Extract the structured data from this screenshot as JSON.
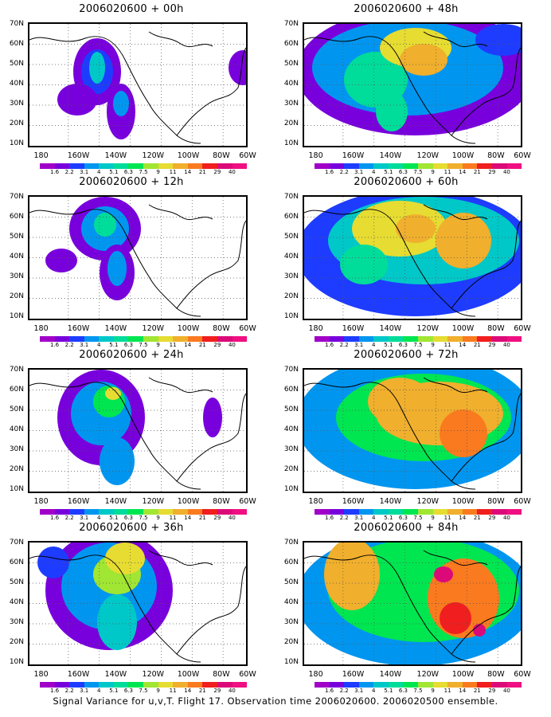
{
  "panels": [
    {
      "title": "2006020600 + 00h"
    },
    {
      "title": "2006020600 + 48h"
    },
    {
      "title": "2006020600 + 12h"
    },
    {
      "title": "2006020600 + 60h"
    },
    {
      "title": "2006020600 + 24h"
    },
    {
      "title": "2006020600 + 72h"
    },
    {
      "title": "2006020600 + 36h"
    },
    {
      "title": "2006020600 + 84h"
    }
  ],
  "lat_labels": [
    "70N",
    "60N",
    "50N",
    "40N",
    "30N",
    "20N",
    "10N"
  ],
  "lon_labels": [
    "180",
    "160W",
    "140W",
    "120W",
    "100W",
    "80W",
    "60W"
  ],
  "colorbar": {
    "labels": [
      "1.6",
      "2.2",
      "3.1",
      "4",
      "5.1",
      "6.3",
      "7.5",
      "9",
      "11",
      "14",
      "21",
      "29",
      "40"
    ],
    "colors": [
      "#a000c8",
      "#7800dc",
      "#1e3cff",
      "#0096f0",
      "#00c8c8",
      "#00dc9a",
      "#00e650",
      "#a0e632",
      "#e6dc32",
      "#f0af2d",
      "#fa7a1f",
      "#f01e1e",
      "#dc0a78",
      "#f00f82"
    ]
  },
  "footer": "Signal Variance for u,v,T. Flight 17. Observation time 2006020600. 2006020500 ensemble."
}
